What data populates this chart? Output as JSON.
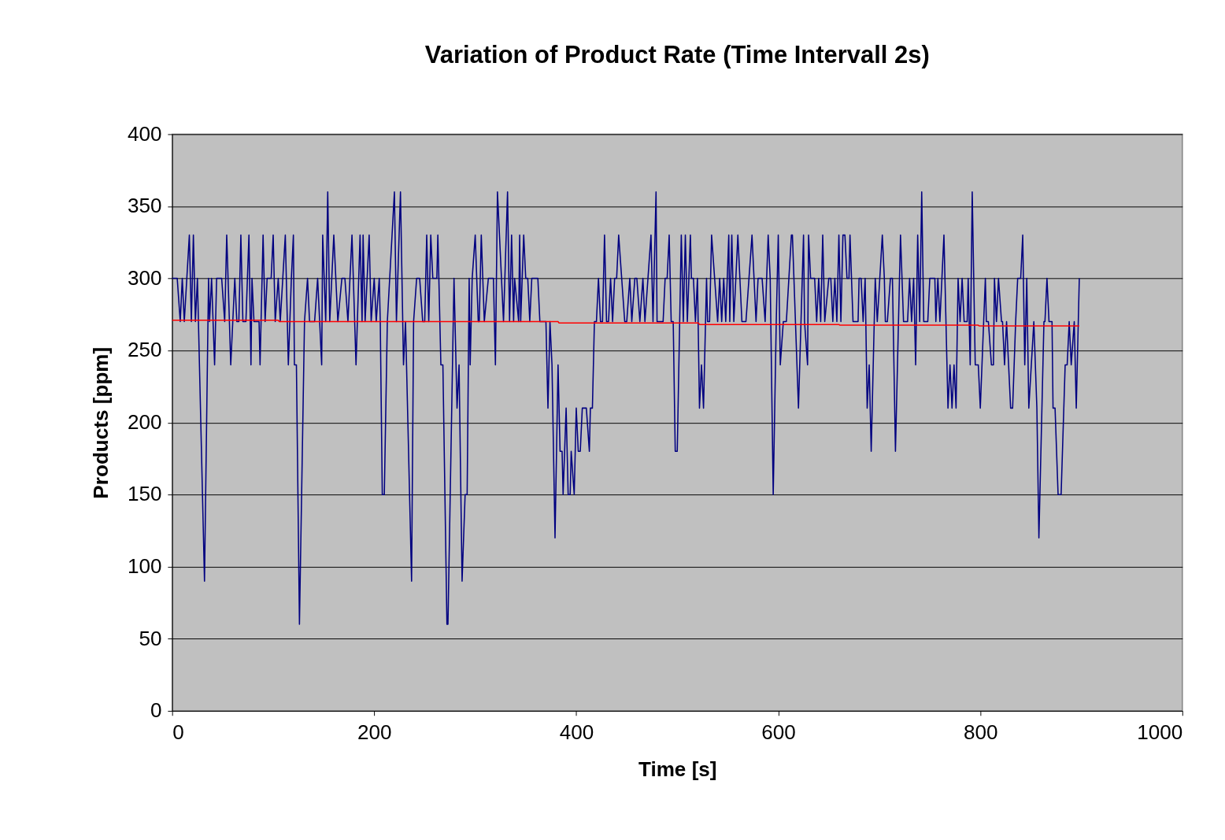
{
  "chart_data": {
    "type": "line",
    "title": "Variation of Product Rate (Time Intervall 2s)",
    "xlabel": "Time [s]",
    "ylabel": "Products [ppm]",
    "xlim": [
      0,
      1000
    ],
    "xticks": [
      0,
      200,
      400,
      600,
      800,
      1000
    ],
    "ylim": [
      0,
      400
    ],
    "yticks": [
      0,
      50,
      100,
      150,
      200,
      250,
      300,
      350,
      400
    ],
    "grid": "y",
    "marker": "none",
    "line_style": "solid",
    "series": [
      {
        "color": "#000080",
        "x": [
          0,
          5,
          8,
          10,
          12,
          17,
          19,
          21,
          23,
          25,
          32,
          36,
          37,
          39,
          42,
          44,
          49,
          52,
          54,
          58,
          62,
          64,
          66,
          68,
          70,
          73,
          76,
          78,
          79,
          81,
          86,
          87,
          90,
          92,
          94,
          98,
          100,
          102,
          105,
          107,
          112,
          115,
          118,
          120,
          121,
          123,
          126,
          131,
          134,
          136,
          141,
          144,
          148,
          149,
          152,
          154,
          156,
          160,
          164,
          168,
          171,
          174,
          178,
          182,
          186,
          188,
          189,
          191,
          195,
          197,
          200,
          202,
          205,
          206,
          208,
          210,
          213,
          220,
          222,
          226,
          229,
          231,
          237,
          239,
          242,
          245,
          248,
          250,
          252,
          254,
          256,
          258,
          262,
          263,
          266,
          268,
          272,
          273,
          279,
          282,
          284,
          287,
          290,
          292,
          294,
          295,
          297,
          300,
          303,
          304,
          306,
          309,
          313,
          318,
          320,
          322,
          328,
          332,
          334,
          336,
          338,
          339,
          343,
          344,
          345,
          348,
          350,
          352,
          354,
          356,
          362,
          364,
          370,
          372,
          374,
          376,
          379,
          382,
          384,
          386,
          387,
          390,
          392,
          394,
          395,
          398,
          400,
          402,
          404,
          406,
          410,
          413,
          414,
          416,
          418,
          420,
          422,
          424,
          426,
          428,
          430,
          432,
          434,
          436,
          438,
          440,
          442,
          445,
          448,
          450,
          453,
          455,
          458,
          460,
          463,
          466,
          468,
          471,
          474,
          476,
          479,
          480,
          486,
          488,
          490,
          492,
          494,
          496,
          498,
          500,
          504,
          506,
          508,
          510,
          513,
          514,
          516,
          518,
          520,
          522,
          524,
          526,
          529,
          530,
          532,
          534,
          537,
          540,
          542,
          544,
          546,
          548,
          551,
          552,
          554,
          556,
          560,
          562,
          564,
          568,
          571,
          574,
          578,
          580,
          584,
          587,
          590,
          592,
          595,
          598,
          600,
          602,
          605,
          608,
          613,
          614,
          617,
          620,
          625,
          626,
          629,
          630,
          632,
          636,
          638,
          640,
          642,
          644,
          646,
          650,
          652,
          654,
          656,
          658,
          660,
          662,
          664,
          666,
          668,
          670,
          671,
          674,
          679,
          680,
          682,
          684,
          686,
          688,
          690,
          692,
          694,
          696,
          698,
          703,
          705,
          706,
          708,
          711,
          713,
          716,
          721,
          724,
          728,
          730,
          732,
          734,
          736,
          738,
          740,
          742,
          744,
          748,
          750,
          755,
          756,
          758,
          760,
          764,
          768,
          770,
          772,
          774,
          776,
          778,
          780,
          782,
          784,
          787,
          788,
          790,
          792,
          795,
          798,
          800,
          805,
          806,
          808,
          811,
          813,
          814,
          816,
          818,
          821,
          822,
          824,
          826,
          828,
          830,
          832,
          835,
          837,
          840,
          842,
          844,
          846,
          848,
          853,
          856,
          858,
          863,
          864,
          866,
          868,
          871,
          872,
          874,
          877,
          880,
          884,
          886,
          888,
          890,
          893,
          895,
          898
        ],
        "values": [
          300,
          300,
          270,
          300,
          270,
          330,
          270,
          330,
          270,
          300,
          90,
          300,
          270,
          300,
          240,
          300,
          300,
          270,
          330,
          240,
          300,
          270,
          270,
          330,
          270,
          270,
          330,
          240,
          300,
          270,
          270,
          240,
          330,
          270,
          300,
          300,
          330,
          270,
          300,
          270,
          330,
          240,
          300,
          330,
          240,
          240,
          60,
          270,
          300,
          270,
          270,
          300,
          240,
          330,
          270,
          360,
          270,
          330,
          270,
          300,
          300,
          270,
          330,
          240,
          330,
          270,
          330,
          270,
          330,
          270,
          300,
          270,
          300,
          270,
          150,
          150,
          270,
          360,
          270,
          360,
          240,
          270,
          90,
          270,
          300,
          300,
          270,
          270,
          330,
          270,
          330,
          300,
          300,
          330,
          240,
          240,
          60,
          60,
          300,
          210,
          240,
          90,
          150,
          150,
          300,
          240,
          300,
          330,
          270,
          270,
          330,
          270,
          300,
          300,
          240,
          360,
          270,
          360,
          270,
          330,
          270,
          300,
          270,
          330,
          270,
          330,
          300,
          300,
          270,
          300,
          300,
          270,
          270,
          210,
          270,
          240,
          120,
          240,
          180,
          180,
          150,
          210,
          150,
          150,
          180,
          150,
          210,
          180,
          180,
          210,
          210,
          180,
          210,
          210,
          270,
          270,
          300,
          270,
          270,
          330,
          270,
          270,
          300,
          270,
          300,
          300,
          330,
          300,
          270,
          270,
          300,
          270,
          300,
          300,
          270,
          300,
          270,
          300,
          330,
          270,
          360,
          270,
          270,
          300,
          300,
          330,
          270,
          270,
          180,
          180,
          330,
          270,
          330,
          270,
          330,
          300,
          300,
          270,
          300,
          210,
          240,
          210,
          300,
          270,
          270,
          330,
          300,
          270,
          300,
          270,
          300,
          270,
          330,
          270,
          330,
          270,
          330,
          300,
          270,
          270,
          300,
          330,
          270,
          300,
          300,
          270,
          330,
          300,
          150,
          270,
          330,
          240,
          270,
          270,
          330,
          330,
          270,
          210,
          330,
          270,
          240,
          330,
          300,
          300,
          270,
          300,
          270,
          330,
          270,
          300,
          300,
          270,
          300,
          270,
          330,
          270,
          330,
          330,
          300,
          300,
          330,
          270,
          270,
          300,
          300,
          270,
          300,
          210,
          240,
          180,
          240,
          300,
          270,
          330,
          300,
          270,
          270,
          300,
          300,
          180,
          330,
          270,
          270,
          300,
          270,
          300,
          240,
          330,
          270,
          360,
          270,
          270,
          300,
          300,
          270,
          300,
          270,
          330,
          210,
          240,
          210,
          240,
          210,
          300,
          270,
          300,
          270,
          270,
          300,
          240,
          360,
          240,
          240,
          210,
          300,
          270,
          270,
          240,
          240,
          300,
          270,
          300,
          270,
          270,
          240,
          270,
          240,
          210,
          210,
          270,
          300,
          300,
          330,
          240,
          300,
          210,
          270,
          210,
          120,
          270,
          270,
          300,
          270,
          270,
          210,
          210,
          150,
          150,
          240,
          240,
          270,
          240,
          270,
          210,
          300
        ]
      },
      {
        "color": "#ff0000",
        "x": [
          0,
          105,
          106,
          382,
          383,
          521,
          522,
          660,
          661,
          798,
          799,
          898
        ],
        "values": [
          271,
          271,
          270,
          270,
          269,
          269,
          268,
          268,
          267.5,
          267.5,
          267,
          267
        ]
      }
    ]
  }
}
